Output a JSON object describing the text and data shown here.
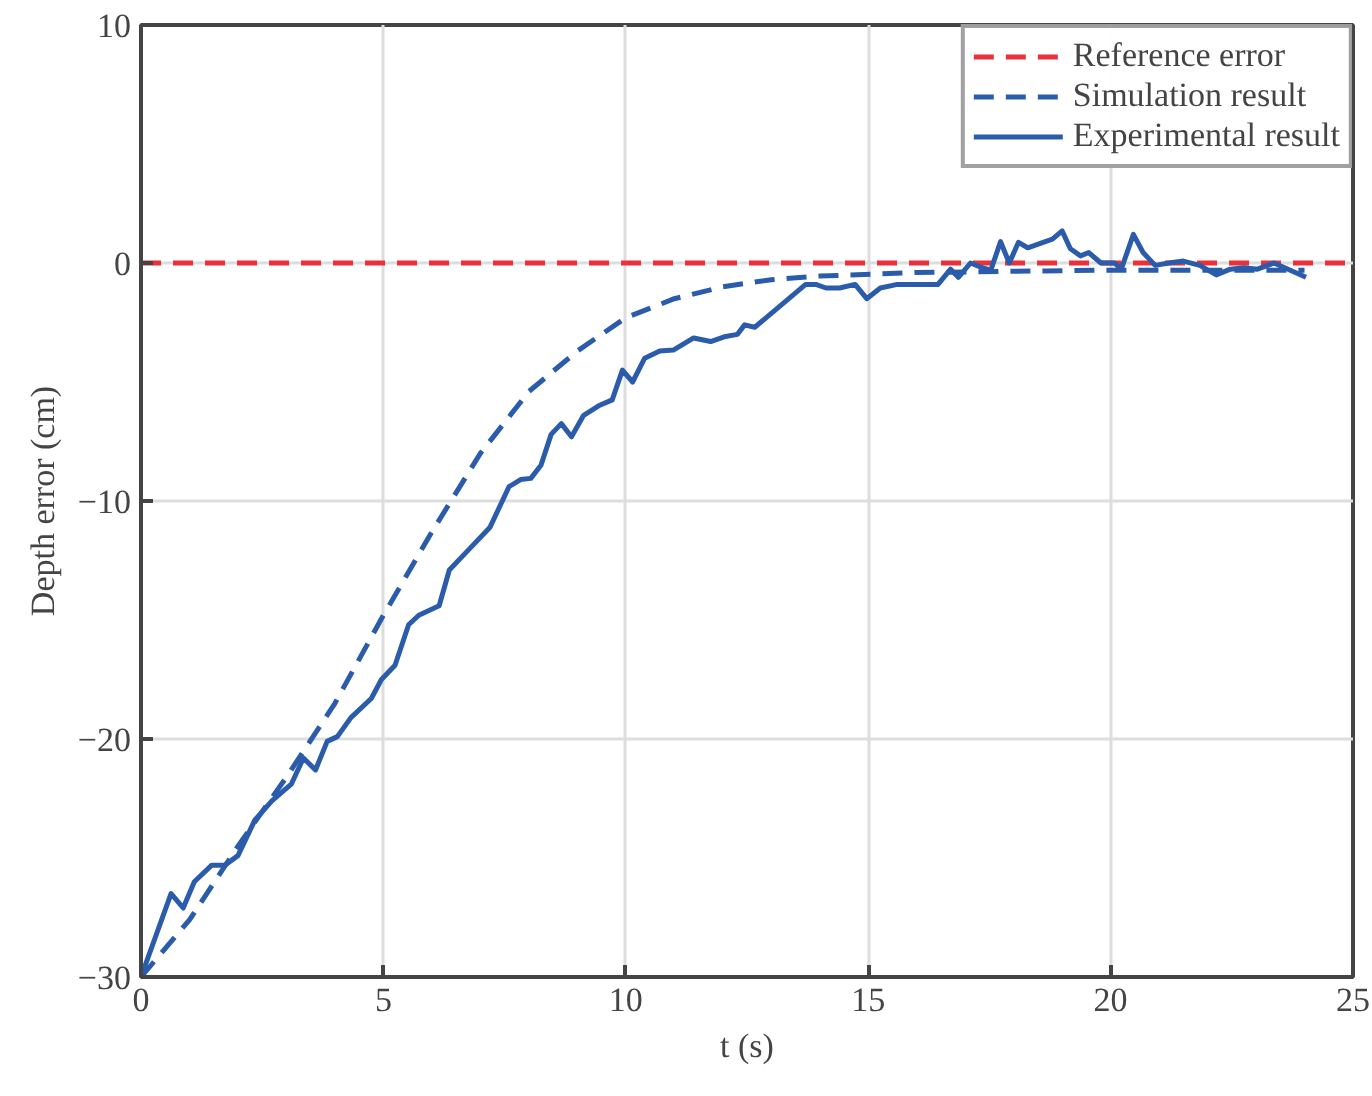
{
  "chart_data": {
    "type": "line",
    "xlabel": "t (s)",
    "ylabel": "Depth error (cm)",
    "xlim": [
      0,
      25
    ],
    "ylim": [
      -30,
      10
    ],
    "xticks": [
      0,
      5,
      10,
      15,
      20,
      25
    ],
    "yticks": [
      {
        "value": -30,
        "label": "−30"
      },
      {
        "value": -20,
        "label": "−20"
      },
      {
        "value": -10,
        "label": "−10"
      },
      0,
      10
    ],
    "grid": true,
    "legend": "top right",
    "series": [
      {
        "name": "Reference error",
        "color": "#e8313a",
        "line_style": "dashed",
        "x": [
          0,
          25
        ],
        "values": [
          0,
          0
        ]
      },
      {
        "name": "Simulation result",
        "color": "#2a5cab",
        "line_style": "dashed",
        "x": [
          0,
          1,
          2,
          3,
          4,
          5,
          6,
          7,
          8,
          9,
          10,
          11,
          12,
          13,
          14,
          16,
          18,
          20,
          22,
          24
        ],
        "values": [
          -30,
          -27.6,
          -24.5,
          -21.6,
          -18.5,
          -14.8,
          -11.3,
          -8.0,
          -5.4,
          -3.7,
          -2.3,
          -1.5,
          -1.0,
          -0.7,
          -0.55,
          -0.4,
          -0.35,
          -0.3,
          -0.3,
          -0.3
        ]
      },
      {
        "name": "Experimental result",
        "color": "#2a5cab",
        "line_style": "solid",
        "x": [
          0,
          0.62,
          0.87,
          1.1,
          1.46,
          1.73,
          2.0,
          2.35,
          2.7,
          3.1,
          3.35,
          3.6,
          3.84,
          4.05,
          4.33,
          4.75,
          4.96,
          5.24,
          5.52,
          5.73,
          6.15,
          6.36,
          6.78,
          7.2,
          7.59,
          7.83,
          8.04,
          8.25,
          8.46,
          8.67,
          8.88,
          9.13,
          9.44,
          9.72,
          9.93,
          10.14,
          10.39,
          10.7,
          10.98,
          11.4,
          11.75,
          12.03,
          12.3,
          12.45,
          12.66,
          13.71,
          13.92,
          14.13,
          14.41,
          14.73,
          14.97,
          15.25,
          15.6,
          16.44,
          16.7,
          16.86,
          17.11,
          17.35,
          17.53,
          17.73,
          17.91,
          18.1,
          18.29,
          18.61,
          18.8,
          19.0,
          19.17,
          19.38,
          19.55,
          19.8,
          20.08,
          20.22,
          20.47,
          20.67,
          20.92,
          21.2,
          21.5,
          21.84,
          22.18,
          22.47,
          22.75,
          23.03,
          23.37,
          23.66,
          24.03
        ],
        "values": [
          -30,
          -26.5,
          -27.1,
          -26.0,
          -25.3,
          -25.3,
          -24.9,
          -23.4,
          -22.6,
          -21.9,
          -20.8,
          -21.3,
          -20.1,
          -19.9,
          -19.1,
          -18.3,
          -17.5,
          -16.9,
          -15.2,
          -14.8,
          -14.4,
          -12.9,
          -12.0,
          -11.1,
          -9.4,
          -9.1,
          -9.05,
          -8.5,
          -7.2,
          -6.75,
          -7.3,
          -6.4,
          -6.0,
          -5.75,
          -4.5,
          -5.0,
          -4.0,
          -3.7,
          -3.66,
          -3.15,
          -3.3,
          -3.1,
          -3.0,
          -2.6,
          -2.7,
          -0.9,
          -0.9,
          -1.05,
          -1.05,
          -0.9,
          -1.5,
          -1.05,
          -0.9,
          -0.9,
          -0.26,
          -0.6,
          0,
          -0.2,
          -0.3,
          0.9,
          0,
          0.87,
          0.64,
          0.87,
          1.0,
          1.35,
          0.6,
          0.3,
          0.44,
          0,
          0,
          -0.26,
          1.2,
          0.44,
          -0.1,
          0,
          0.08,
          -0.1,
          -0.5,
          -0.26,
          -0.2,
          -0.26,
          0,
          -0.26,
          -0.6
        ]
      }
    ]
  }
}
